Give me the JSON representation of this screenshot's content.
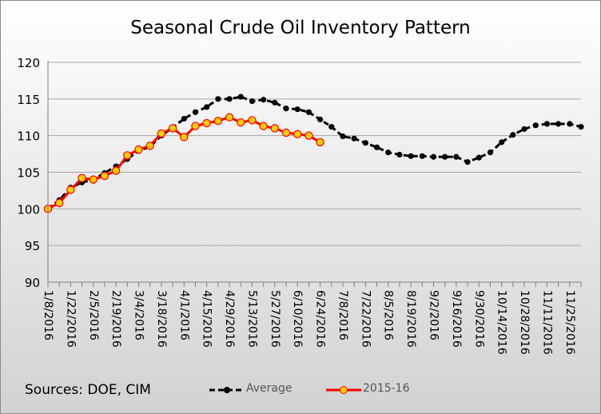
{
  "chart_data": {
    "type": "line",
    "title": "Seasonal Crude Oil Inventory Pattern",
    "xlabel": "",
    "ylabel": "",
    "ylim": [
      90,
      120
    ],
    "yticks": [
      90,
      95,
      100,
      105,
      110,
      115,
      120
    ],
    "x_tick_labels": [
      "1/8/2016",
      "1/22/2016",
      "2/5/2016",
      "2/19/2016",
      "3/4/2016",
      "3/18/2016",
      "4/1/2016",
      "4/15/2016",
      "4/29/2016",
      "5/13/2016",
      "5/27/2016",
      "6/10/2016",
      "6/24/2016",
      "7/8/2016",
      "7/22/2016",
      "8/5/2016",
      "8/19/2016",
      "9/2/2016",
      "9/16/2016",
      "9/30/2016",
      "10/14/2016",
      "10/28/2016",
      "11/11/2016",
      "11/25/2016"
    ],
    "grid": true,
    "legend_position": "bottom",
    "series": [
      {
        "name": "Average",
        "color": "#000000",
        "marker_color": "#000000",
        "values": [
          100.0,
          101.2,
          102.9,
          103.6,
          104.0,
          104.9,
          105.8,
          106.8,
          107.9,
          108.5,
          110.0,
          111.1,
          112.3,
          113.2,
          113.9,
          115.0,
          115.0,
          115.3,
          114.7,
          114.9,
          114.5,
          113.7,
          113.6,
          113.2,
          112.2,
          111.2,
          109.9,
          109.6,
          109.0,
          108.4,
          107.7,
          107.4,
          107.2,
          107.2,
          107.1,
          107.1,
          107.1,
          106.4,
          107.0,
          107.7,
          109.1,
          110.1,
          110.9,
          111.4,
          111.6,
          111.6,
          111.6,
          111.2
        ]
      },
      {
        "name": "2015-16",
        "color": "#ff0000",
        "marker_color": "#ffcc00",
        "values": [
          100.0,
          100.8,
          102.6,
          104.2,
          104.0,
          104.5,
          105.2,
          107.3,
          108.1,
          108.6,
          110.3,
          111.0,
          109.8,
          111.3,
          111.7,
          112.0,
          112.5,
          111.8,
          112.1,
          111.3,
          111.0,
          110.4,
          110.2,
          110.0,
          109.1
        ]
      }
    ]
  },
  "footer": {
    "sources": "Sources:  DOE, CIM"
  }
}
